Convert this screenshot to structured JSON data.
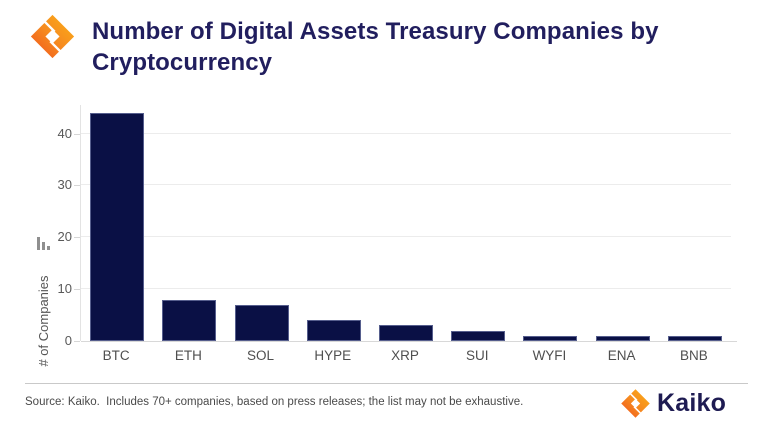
{
  "header": {
    "title": "Number of Digital Assets Treasury Companies by Cryptocurrency"
  },
  "chart_data": {
    "type": "bar",
    "title": "Number of Digital Assets Treasury Companies by Cryptocurrency",
    "categories": [
      "BTC",
      "ETH",
      "SOL",
      "HYPE",
      "XRP",
      "SUI",
      "WYFI",
      "ENA",
      "BNB"
    ],
    "values": [
      44,
      8,
      7,
      4,
      3,
      2,
      1,
      1,
      1
    ],
    "xlabel": "",
    "ylabel": "# of Companies",
    "yticks": [
      0,
      10,
      20,
      30,
      40
    ],
    "ylim": [
      0,
      45.5
    ],
    "grid": true,
    "legend_position": "none",
    "bar_color": "#0a1045"
  },
  "icons": {
    "header_logo": "kaiko-diamond-logo",
    "axis_icon": "mini-bar-chart-icon",
    "footer_logo": "kaiko-diamond-logo"
  },
  "footer": {
    "source": "Source: Kaiko.  Includes 70+ companies, based on press releases; the list may not be exhaustive.",
    "brand": "Kaiko"
  },
  "colors": {
    "bar": "#0a1045",
    "title_text": "#211e5e",
    "axis_text": "#595959",
    "gridline": "#ececec",
    "source_text": "#4a4a4a",
    "brand_text": "#1e1b52",
    "logo_yellow": "#fbb217",
    "logo_orange": "#f68b1f",
    "logo_red": "#f0511e"
  }
}
